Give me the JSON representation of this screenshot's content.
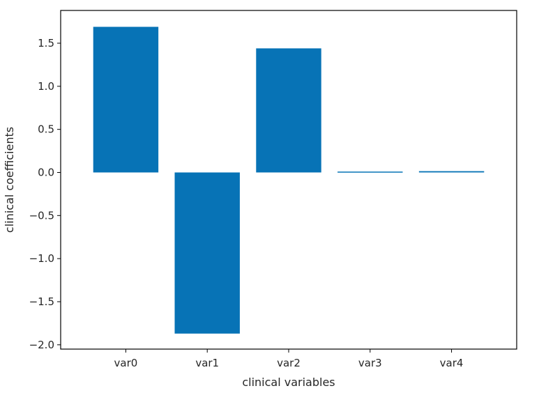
{
  "chart_data": {
    "type": "bar",
    "categories": [
      "var0",
      "var1",
      "var2",
      "var3",
      "var4"
    ],
    "values": [
      1.69,
      -1.87,
      1.44,
      0.01,
      0.015
    ],
    "xlabel": "clinical variables",
    "ylabel": "clinical coefficients",
    "ylim": [
      -2.05,
      1.88
    ],
    "yticks": [
      1.5,
      1.0,
      0.5,
      0.0,
      -0.5,
      -1.0,
      -1.5,
      -2.0
    ],
    "ytick_labels": [
      "1.5",
      "1.0",
      "0.5",
      "0.0",
      "−0.5",
      "−1.0",
      "−1.5",
      "−2.0"
    ],
    "grid": false,
    "bar_color": "#0773b6"
  }
}
